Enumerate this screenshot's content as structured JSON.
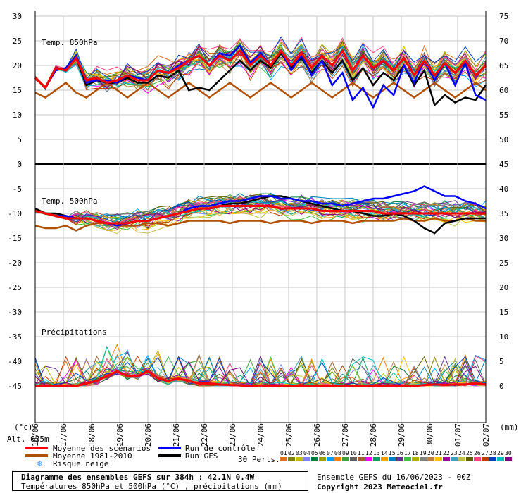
{
  "chart_data": {
    "type": "line",
    "title": "Diagramme des ensembles GEFS sur 384h : 42.1N 0.4W",
    "subtitle": "Températures 850hPa et 500hPa (°C) , précipitations (mm)",
    "run_label": "Ensemble GEFS du 16/06/2023 - 00Z",
    "copyright": "Copyright 2023 Meteociel.fr",
    "altitude_label": "Alt. 635m",
    "left_unit": "(°c)",
    "right_unit": "(mm)",
    "x_dates": [
      "16/06",
      "17/06",
      "18/06",
      "19/06",
      "20/06",
      "21/06",
      "22/06",
      "23/06",
      "24/06",
      "25/06",
      "26/06",
      "27/06",
      "28/06",
      "29/06",
      "30/06",
      "01/07",
      "02/07"
    ],
    "left_ticks": [
      30,
      25,
      20,
      15,
      10,
      5,
      0,
      -5,
      -10,
      -15,
      -20,
      -25,
      -30,
      -35,
      -40,
      -45
    ],
    "right_ticks": [
      75,
      70,
      65,
      60,
      55,
      50,
      45,
      40,
      35,
      30,
      25,
      20,
      15,
      10,
      5,
      0
    ],
    "panels": [
      {
        "label": "Temp. 850hPa",
        "ylim": [
          0,
          30
        ]
      },
      {
        "label": "Temp. 500hPa",
        "ylim": [
          -45,
          0
        ]
      },
      {
        "label": "Précipitations",
        "ylim": [
          0,
          15
        ]
      }
    ],
    "series": [
      {
        "name": "Moyenne des scénarios",
        "color": "#ff0000",
        "t850": [
          17.5,
          15.5,
          19.5,
          19,
          21.5,
          17,
          17.5,
          16.5,
          17,
          18,
          17,
          17,
          19,
          18.5,
          19.5,
          21,
          22,
          20,
          22,
          21,
          23,
          20,
          22,
          20,
          23,
          20,
          22.5,
          19.5,
          22,
          20,
          23,
          19,
          22,
          19.5,
          21,
          19,
          21.5,
          18,
          21,
          18,
          20.5,
          18.5,
          21,
          18,
          20
        ],
        "t500": [
          -9.5,
          -10,
          -10.5,
          -11,
          -11,
          -11,
          -11.5,
          -12,
          -12,
          -12,
          -11.5,
          -11.5,
          -11,
          -10.5,
          -10,
          -9.5,
          -9,
          -9,
          -8.5,
          -8.5,
          -8.5,
          -8.5,
          -8.5,
          -8.5,
          -9,
          -9,
          -9,
          -9,
          -9.5,
          -9.5,
          -9.5,
          -9.5,
          -9.5,
          -9.5,
          -10,
          -10,
          -10,
          -10,
          -10,
          -10,
          -10,
          -10,
          -10,
          -10,
          -10
        ],
        "precip": [
          0,
          0,
          0,
          0,
          0,
          0.5,
          1,
          2,
          3,
          2,
          2,
          3,
          1.5,
          1,
          1.5,
          1,
          0.5,
          0.5,
          0.3,
          0.2,
          0.1,
          0,
          0.1,
          0,
          0,
          0,
          0,
          0,
          0,
          0,
          0,
          0,
          0,
          0,
          0,
          0,
          0,
          0,
          0.2,
          0.3,
          0.2,
          0.3,
          0.3,
          0.5,
          0.3
        ]
      },
      {
        "name": "Moyenne 1981-2010",
        "color": "#b05000",
        "t850": [
          14.5,
          13.5,
          15,
          16.5,
          14.5,
          13.5,
          15,
          16.5,
          15,
          13.5,
          15,
          16.5,
          15,
          13.5,
          15,
          16.5,
          15,
          13.5,
          15,
          16.5,
          15,
          13.5,
          15,
          16.5,
          15,
          13.5,
          15,
          16.5,
          15,
          13.5,
          15,
          16.5,
          15,
          13.5,
          15,
          16.5,
          15,
          13.5,
          15,
          16.5,
          15,
          13.5,
          15,
          16.5,
          15
        ],
        "t500": [
          -12.5,
          -13,
          -13,
          -12.5,
          -13.5,
          -12.5,
          -12,
          -12,
          -12.5,
          -12.5,
          -12.5,
          -12,
          -12,
          -12.5,
          -12,
          -11.5,
          -11.5,
          -11.5,
          -11.5,
          -12,
          -11.5,
          -11.5,
          -11.5,
          -12,
          -11.5,
          -11.5,
          -11.5,
          -12,
          -11.5,
          -11.5,
          -11.5,
          -12,
          -11.5,
          -11.5,
          -11.5,
          -11.5,
          -11,
          -11.5,
          -11.5,
          -11,
          -11.5,
          -11.5,
          -11,
          -11.5,
          -11.5
        ]
      },
      {
        "name": "Run de contrôle",
        "color": "#0000ff",
        "t850": [
          17.5,
          15.5,
          19,
          19.5,
          22,
          16.5,
          17,
          17,
          16.5,
          18,
          17.5,
          17,
          19,
          18.5,
          20,
          21,
          22,
          20,
          22.5,
          22,
          24,
          20.5,
          22.5,
          20,
          23,
          19,
          22,
          18,
          21,
          16,
          18.5,
          13,
          15.5,
          11.5,
          16,
          14,
          20,
          16.5,
          21,
          17,
          20.5,
          16,
          20.5,
          14,
          13
        ],
        "t500": [
          -9.5,
          -10,
          -10.5,
          -10.5,
          -11,
          -11,
          -11.5,
          -12,
          -12.5,
          -12,
          -11.5,
          -11.5,
          -11,
          -10.5,
          -10,
          -9,
          -8.5,
          -8.5,
          -8,
          -7.5,
          -7.5,
          -7,
          -6.5,
          -6.5,
          -7,
          -7,
          -7.5,
          -7.5,
          -8,
          -8,
          -8.5,
          -8,
          -7.5,
          -7,
          -7,
          -6.5,
          -6,
          -5.5,
          -4.5,
          -5.5,
          -6.5,
          -6.5,
          -7.5,
          -8,
          -9
        ]
      },
      {
        "name": "Run GFS",
        "color": "#000000",
        "t850": [
          17.5,
          15.5,
          19.5,
          19,
          21.5,
          16,
          17,
          16.5,
          16.5,
          17.5,
          16.5,
          16.5,
          18,
          17.5,
          19,
          15,
          15.5,
          15,
          17,
          19,
          21,
          19,
          21,
          19.5,
          22.5,
          19.5,
          21.5,
          18.5,
          21,
          18.5,
          21,
          17,
          19.5,
          16,
          18.5,
          17,
          20,
          16,
          19,
          12,
          14,
          12.5,
          13.5,
          13,
          16
        ],
        "t500": [
          -9,
          -10,
          -10,
          -10.5,
          -11,
          -11,
          -11.5,
          -12,
          -12,
          -12,
          -11.5,
          -11.5,
          -11,
          -10.5,
          -10,
          -9.5,
          -9,
          -9,
          -8.5,
          -8,
          -8,
          -7.5,
          -7,
          -6.5,
          -6.5,
          -7,
          -7.5,
          -8,
          -8.5,
          -9,
          -9.5,
          -9.5,
          -10,
          -10.5,
          -10.5,
          -10,
          -10.5,
          -11.5,
          -13,
          -14,
          -12,
          -11.5,
          -11,
          -11,
          -11
        ]
      }
    ],
    "perturbations_label": "30 Perts.",
    "perturbation_ids": [
      "01",
      "02",
      "03",
      "04",
      "05",
      "06",
      "07",
      "08",
      "09",
      "10",
      "11",
      "12",
      "13",
      "14",
      "15",
      "16",
      "17",
      "18",
      "19",
      "20",
      "21",
      "22",
      "23",
      "24",
      "25",
      "26",
      "27",
      "28",
      "29",
      "30"
    ],
    "perturbation_colors": [
      "#e07020",
      "#808000",
      "#c0c000",
      "#8080ff",
      "#008040",
      "#a0a000",
      "#00a0ff",
      "#ff8000",
      "#40a040",
      "#606060",
      "#a06030",
      "#ff00ff",
      "#00a060",
      "#ffa000",
      "#0080c0",
      "#603090",
      "#40c040",
      "#b0b000",
      "#808080",
      "#c08040",
      "#ffc000",
      "#a000a0",
      "#40a0c0",
      "#c0c040",
      "#606000",
      "#ff4080",
      "#c04000",
      "#0040c0",
      "#00c0c0",
      "#800080"
    ],
    "legend": {
      "mean_scenarios": "Moyenne des scénarios",
      "mean_climate": "Moyenne 1981-2010",
      "control_run": "Run de contrôle",
      "gfs_run": "Run GFS",
      "snow_risk": "Risque neige"
    }
  }
}
